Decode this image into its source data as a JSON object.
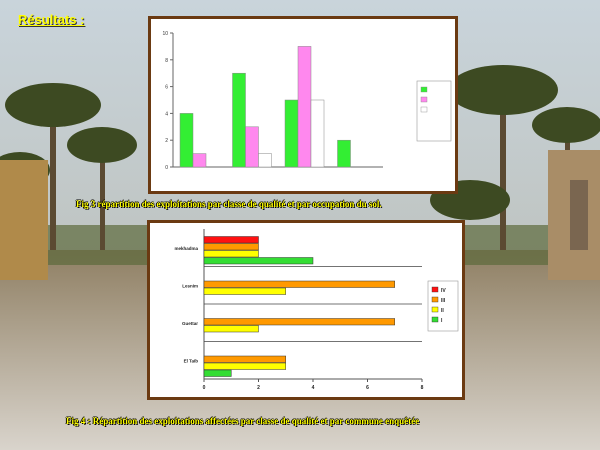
{
  "slide": {
    "title": "Résultats :",
    "colors": {
      "title": "#ffff00",
      "frame": "#6b3a12"
    }
  },
  "chart_data": [
    {
      "type": "bar",
      "title": "",
      "caption": "Fig 3 répartition des exploitations par classe de qualité et par occupation du sol.",
      "ylim": [
        0,
        10
      ],
      "yticks": [
        "0",
        "2",
        "4",
        "6",
        "8",
        "10"
      ],
      "categories": [
        "",
        "",
        "",
        ""
      ],
      "series": [
        {
          "color": "#33ee33",
          "values": [
            4,
            7,
            5,
            2
          ]
        },
        {
          "color": "#ff88ee",
          "values": [
            1,
            3,
            9,
            0
          ]
        },
        {
          "color": "#ffffff",
          "values": [
            0,
            1,
            5,
            0
          ]
        }
      ],
      "grid": false,
      "legend": "right"
    },
    {
      "type": "bar",
      "orientation": "horizontal",
      "title": "",
      "caption": "Fig 4 : Répartition des exploitations  affectées par  classe de qualité et par commune enquêtée",
      "xlim": [
        0,
        8
      ],
      "xticks": [
        "0",
        "2",
        "4",
        "6",
        "8"
      ],
      "categories": [
        "El Taib",
        "Guettar",
        "Lesnim",
        "mekhadma"
      ],
      "series": [
        {
          "name": "I",
          "color": "#33dd33",
          "values": [
            1,
            0,
            0,
            4
          ]
        },
        {
          "name": "II",
          "color": "#ffff00",
          "values": [
            3,
            2,
            3,
            2
          ]
        },
        {
          "name": "III",
          "color": "#ff9900",
          "values": [
            3,
            7,
            7,
            2
          ]
        },
        {
          "name": "IV",
          "color": "#ff1111",
          "values": [
            0,
            0,
            0,
            2
          ]
        }
      ],
      "grid": true,
      "legend": "right"
    }
  ]
}
